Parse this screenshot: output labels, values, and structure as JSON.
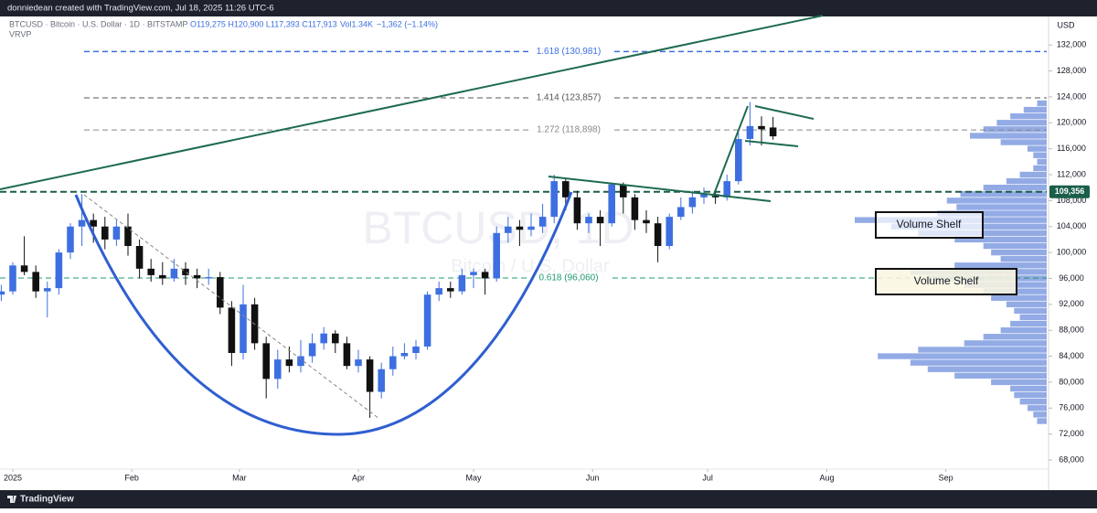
{
  "header": {
    "credit": "donniedean created with TradingView.com, Jul 18, 2025 11:26 UTC-6",
    "symbol": "BTCUSD · Bitcoin · U.S. Dollar · 1D · BITSTAMP",
    "ohlc": "O119,275 H120,900 L117,393 C117,913",
    "volume": "Vol1.34K",
    "change": "−1,362 (−1.14%)",
    "indicator": "VRVP"
  },
  "footer": {
    "brand": "TradingView"
  },
  "chart_data": {
    "type": "candlestick",
    "watermark": "BTCUSD, 1D",
    "watermark_sub": "Bitcoin / U.S. Dollar",
    "currency": "USD",
    "up_color": "#3d6fe0",
    "down_color": "#111111",
    "candles": [
      [
        93500,
        95000,
        92500,
        94000
      ],
      [
        94000,
        98500,
        93500,
        98000
      ],
      [
        98000,
        102500,
        96500,
        97000
      ],
      [
        97000,
        98000,
        93000,
        94000
      ],
      [
        94000,
        95500,
        90000,
        94500
      ],
      [
        94500,
        100500,
        93500,
        100000
      ],
      [
        100000,
        104500,
        99000,
        104000
      ],
      [
        104000,
        109000,
        101000,
        105000
      ],
      [
        105000,
        106000,
        101500,
        104000
      ],
      [
        104000,
        105500,
        100500,
        102000
      ],
      [
        102000,
        105000,
        101000,
        104000
      ],
      [
        104000,
        106000,
        99500,
        101000
      ],
      [
        101000,
        102000,
        96000,
        97500
      ],
      [
        97500,
        99000,
        95500,
        96500
      ],
      [
        96500,
        98500,
        95000,
        96000
      ],
      [
        96000,
        99000,
        95500,
        97500
      ],
      [
        97500,
        98500,
        95000,
        96500
      ],
      [
        96500,
        97500,
        94500,
        96000
      ],
      [
        96000,
        97500,
        95000,
        96200
      ],
      [
        96200,
        97000,
        90500,
        91500
      ],
      [
        91500,
        92500,
        82500,
        84500
      ],
      [
        84500,
        95000,
        83500,
        92000
      ],
      [
        92000,
        93000,
        85000,
        86000
      ],
      [
        86000,
        87000,
        77500,
        80500
      ],
      [
        80500,
        85000,
        79000,
        83500
      ],
      [
        83500,
        85500,
        81500,
        82500
      ],
      [
        82500,
        86500,
        81500,
        84000
      ],
      [
        84000,
        87500,
        83000,
        86000
      ],
      [
        86000,
        88500,
        85000,
        87500
      ],
      [
        87500,
        88000,
        84500,
        86000
      ],
      [
        86000,
        87000,
        82000,
        82500
      ],
      [
        82500,
        85000,
        81500,
        83500
      ],
      [
        83500,
        84000,
        74500,
        78500
      ],
      [
        78500,
        83000,
        77500,
        82000
      ],
      [
        82000,
        85500,
        81000,
        84000
      ],
      [
        84000,
        86000,
        83500,
        84500
      ],
      [
        84500,
        86500,
        83500,
        85500
      ],
      [
        85500,
        94000,
        85000,
        93500
      ],
      [
        93500,
        95500,
        92500,
        94500
      ],
      [
        94500,
        95500,
        93000,
        94000
      ],
      [
        94000,
        97500,
        93500,
        96500
      ],
      [
        96500,
        97500,
        94500,
        97000
      ],
      [
        97000,
        97500,
        93500,
        96000
      ],
      [
        96000,
        104000,
        95500,
        103000
      ],
      [
        103000,
        105500,
        101500,
        104000
      ],
      [
        104000,
        105000,
        101000,
        103500
      ],
      [
        103500,
        106000,
        102500,
        104000
      ],
      [
        104000,
        107500,
        103000,
        105500
      ],
      [
        105500,
        112000,
        104500,
        111000
      ],
      [
        111000,
        111500,
        106500,
        108500
      ],
      [
        108500,
        109500,
        103500,
        104500
      ],
      [
        104500,
        106000,
        103000,
        105500
      ],
      [
        105500,
        106500,
        101000,
        104500
      ],
      [
        104500,
        110500,
        104000,
        110500
      ],
      [
        110500,
        110800,
        106000,
        108500
      ],
      [
        108500,
        109000,
        103500,
        105000
      ],
      [
        105000,
        106500,
        103000,
        104500
      ],
      [
        104500,
        105500,
        98500,
        101000
      ],
      [
        101000,
        106000,
        100500,
        105500
      ],
      [
        105500,
        108500,
        105000,
        107000
      ],
      [
        107000,
        109500,
        106000,
        108500
      ],
      [
        108500,
        110000,
        107500,
        109000
      ],
      [
        109000,
        109500,
        107500,
        108500
      ],
      [
        108500,
        112000,
        108000,
        111000
      ],
      [
        111000,
        118500,
        110500,
        117500
      ],
      [
        117500,
        123200,
        116500,
        119500
      ],
      [
        119500,
        121000,
        116500,
        119000
      ],
      [
        119275,
        120900,
        117393,
        117913
      ]
    ],
    "xlim": [
      -0.11,
      90.76
    ],
    "xticks": [
      {
        "value": 1,
        "label": "2025"
      },
      {
        "value": 11.33,
        "label": "Feb"
      },
      {
        "value": 20.67,
        "label": "Mar"
      },
      {
        "value": 31,
        "label": "Apr"
      },
      {
        "value": 41,
        "label": "May"
      },
      {
        "value": 51.33,
        "label": "Jun"
      },
      {
        "value": 61.33,
        "label": "Jul"
      },
      {
        "value": 71.67,
        "label": "Aug"
      },
      {
        "value": 82,
        "label": "Sep"
      }
    ],
    "ylim": [
      66590,
      136400
    ],
    "yticks": [
      {
        "value": 68000,
        "label": "68,000"
      },
      {
        "value": 72000,
        "label": "72,000"
      },
      {
        "value": 76000,
        "label": "76,000"
      },
      {
        "value": 80000,
        "label": "80,000"
      },
      {
        "value": 84000,
        "label": "84,000"
      },
      {
        "value": 88000,
        "label": "88,000"
      },
      {
        "value": 92000,
        "label": "92,000"
      },
      {
        "value": 96000,
        "label": "96,000"
      },
      {
        "value": 100000,
        "label": "100,000"
      },
      {
        "value": 104000,
        "label": "104,000"
      },
      {
        "value": 108000,
        "label": "108,000"
      },
      {
        "value": 112000,
        "label": "112,000"
      },
      {
        "value": 116000,
        "label": "116,000"
      },
      {
        "value": 120000,
        "label": "120,000"
      },
      {
        "value": 124000,
        "label": "124,000"
      },
      {
        "value": 128000,
        "label": "128,000"
      },
      {
        "value": 132000,
        "label": "132,000"
      }
    ],
    "fib_levels": [
      {
        "value": 130981,
        "label": "1.618 (130,981)",
        "color": "#3d6fe0"
      },
      {
        "value": 123857,
        "label": "1.414 (123,857)",
        "color": "#555555"
      },
      {
        "value": 118898,
        "label": "1.272 (118,898)",
        "color": "#888888"
      },
      {
        "value": 96060,
        "label": "0.618 (96,060)",
        "color": "#1f9a6e"
      }
    ],
    "price_line": {
      "value": 109356,
      "label": "109,356",
      "color": "#1b5e4a"
    },
    "volume_profile": {
      "color": "#6f8fdc",
      "prices": [
        123000,
        122000,
        121000,
        120000,
        119000,
        118000,
        117000,
        116000,
        115000,
        114000,
        113000,
        112000,
        111000,
        110000,
        109000,
        108000,
        107000,
        106000,
        105000,
        104000,
        103000,
        102000,
        101000,
        100000,
        99000,
        98000,
        97000,
        96000,
        95000,
        94000,
        93000,
        92000,
        91000,
        90000,
        89000,
        88000,
        87000,
        86000,
        85000,
        84000,
        83000,
        82000,
        81000,
        80000,
        79000,
        78000,
        77000,
        76000,
        75000,
        74000
      ],
      "values": [
        5,
        12,
        19,
        26,
        33,
        40,
        24,
        10,
        7,
        5,
        7,
        14,
        21,
        33,
        45,
        52,
        47,
        57,
        100,
        81,
        67,
        48,
        33,
        29,
        24,
        48,
        71,
        62,
        43,
        33,
        29,
        21,
        17,
        14,
        19,
        24,
        33,
        43,
        67,
        88,
        71,
        62,
        48,
        29,
        19,
        17,
        14,
        10,
        7,
        5
      ]
    },
    "annotations": [
      "Volume Shelf",
      "Volume Shelf"
    ]
  }
}
